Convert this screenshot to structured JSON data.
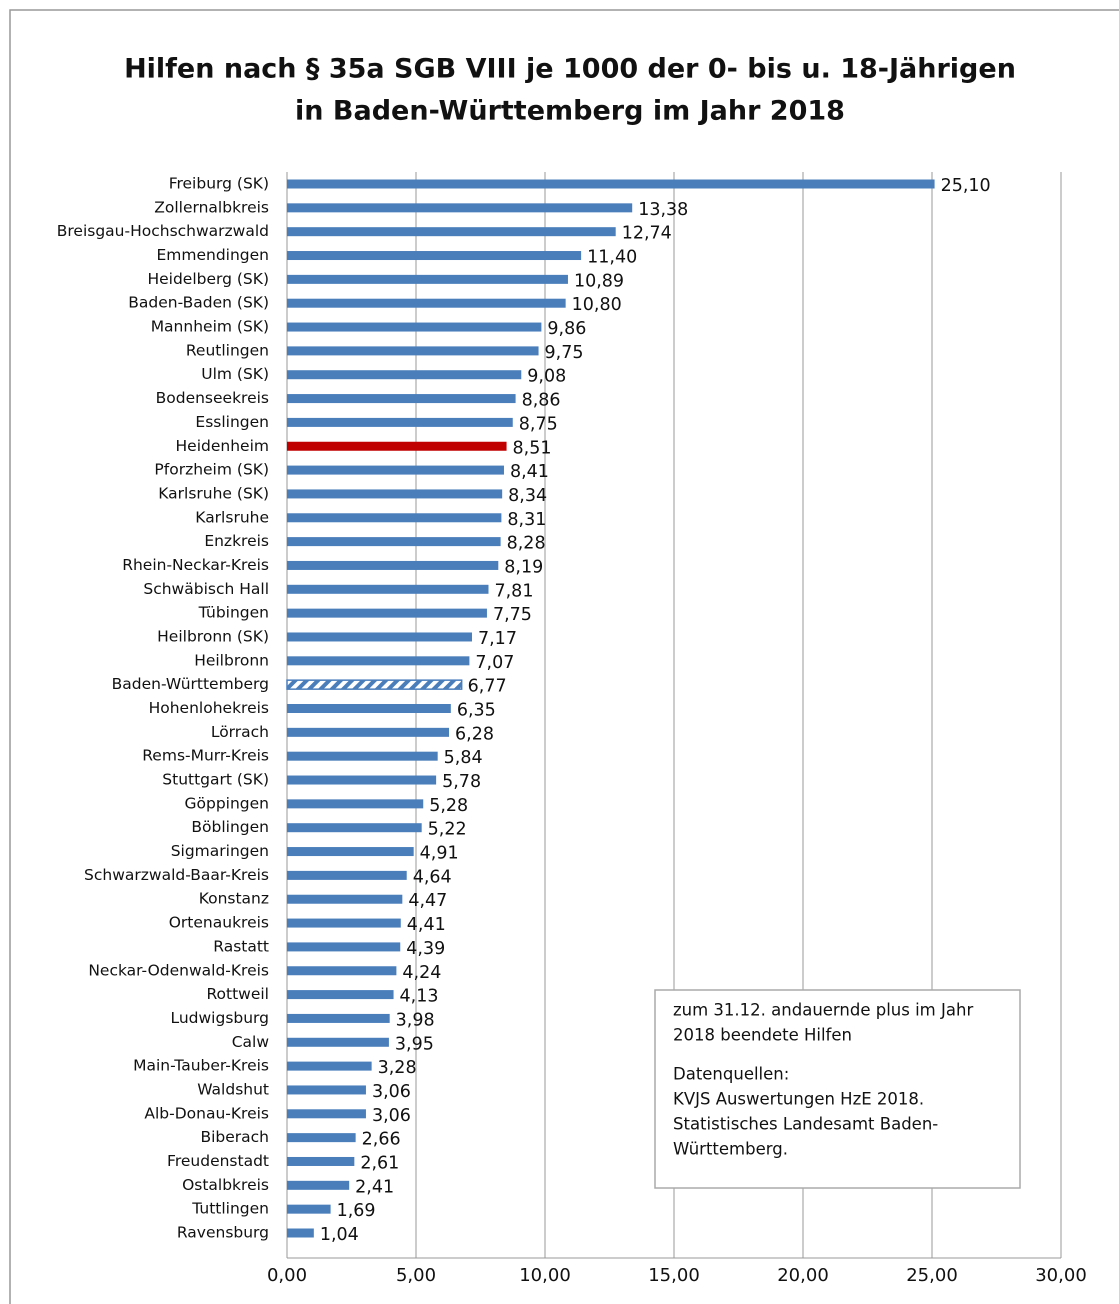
{
  "chart_data": {
    "type": "barh",
    "title": [
      "Hilfen nach § 35a SGB VIII je 1000 der 0- bis u. 18-Jährigen",
      "in Baden-Württemberg im Jahr 2018"
    ],
    "categories": [
      "Freiburg (SK)",
      "Zollernalbkreis",
      "Breisgau-Hochschwarzwald",
      "Emmendingen",
      "Heidelberg (SK)",
      "Baden-Baden (SK)",
      "Mannheim (SK)",
      "Reutlingen",
      "Ulm (SK)",
      "Bodenseekreis",
      "Esslingen",
      "Heidenheim",
      "Pforzheim (SK)",
      "Karlsruhe (SK)",
      "Karlsruhe",
      "Enzkreis",
      "Rhein-Neckar-Kreis",
      "Schwäbisch Hall",
      "Tübingen",
      "Heilbronn (SK)",
      "Heilbronn",
      "Baden-Württemberg",
      "Hohenlohekreis",
      "Lörrach",
      "Rems-Murr-Kreis",
      "Stuttgart (SK)",
      "Göppingen",
      "Böblingen",
      "Sigmaringen",
      "Schwarzwald-Baar-Kreis",
      "Konstanz",
      "Ortenaukreis",
      "Rastatt",
      "Neckar-Odenwald-Kreis",
      "Rottweil",
      "Ludwigsburg",
      "Calw",
      "Main-Tauber-Kreis",
      "Waldshut",
      "Alb-Donau-Kreis",
      "Biberach",
      "Freudenstadt",
      "Ostalbkreis",
      "Tuttlingen",
      "Ravensburg"
    ],
    "values": [
      25.1,
      13.38,
      12.74,
      11.4,
      10.89,
      10.8,
      9.86,
      9.75,
      9.08,
      8.86,
      8.75,
      8.51,
      8.41,
      8.34,
      8.31,
      8.28,
      8.19,
      7.81,
      7.75,
      7.17,
      7.07,
      6.77,
      6.35,
      6.28,
      5.84,
      5.78,
      5.28,
      5.22,
      4.91,
      4.64,
      4.47,
      4.41,
      4.39,
      4.24,
      4.13,
      3.98,
      3.95,
      3.28,
      3.06,
      3.06,
      2.66,
      2.61,
      2.41,
      1.69,
      1.04
    ],
    "value_labels": [
      "25,10",
      "13,38",
      "12,74",
      "11,40",
      "10,89",
      "10,80",
      "9,86",
      "9,75",
      "9,08",
      "8,86",
      "8,75",
      "8,51",
      "8,41",
      "8,34",
      "8,31",
      "8,28",
      "8,19",
      "7,81",
      "7,75",
      "7,17",
      "7,07",
      "6,77",
      "6,35",
      "6,28",
      "5,84",
      "5,78",
      "5,28",
      "5,22",
      "4,91",
      "4,64",
      "4,47",
      "4,41",
      "4,39",
      "4,24",
      "4,13",
      "3,98",
      "3,95",
      "3,28",
      "3,06",
      "3,06",
      "2,66",
      "2,61",
      "2,41",
      "1,69",
      "1,04"
    ],
    "color": "#4a7ebb",
    "highlight": {
      "category": "Heidenheim",
      "color": "#c00000"
    },
    "hatched": "Baden-Württemberg",
    "xlim": [
      0,
      30
    ],
    "xticks": [
      {
        "value": 0,
        "label": "0,00"
      },
      {
        "value": 5,
        "label": "5,00"
      },
      {
        "value": 10,
        "label": "10,00"
      },
      {
        "value": 15,
        "label": "15,00"
      },
      {
        "value": 20,
        "label": "20,00"
      },
      {
        "value": 25,
        "label": "25,00"
      },
      {
        "value": 30,
        "label": "30,00"
      }
    ],
    "grid": true,
    "note": [
      "zum 31.12. andauernde plus im Jahr",
      "2018 beendete Hilfen"
    ],
    "sources": [
      "Datenquellen:",
      "KVJS Auswertungen HzE 2018.",
      "Statistisches Landesamt Baden-",
      "Württemberg."
    ]
  }
}
